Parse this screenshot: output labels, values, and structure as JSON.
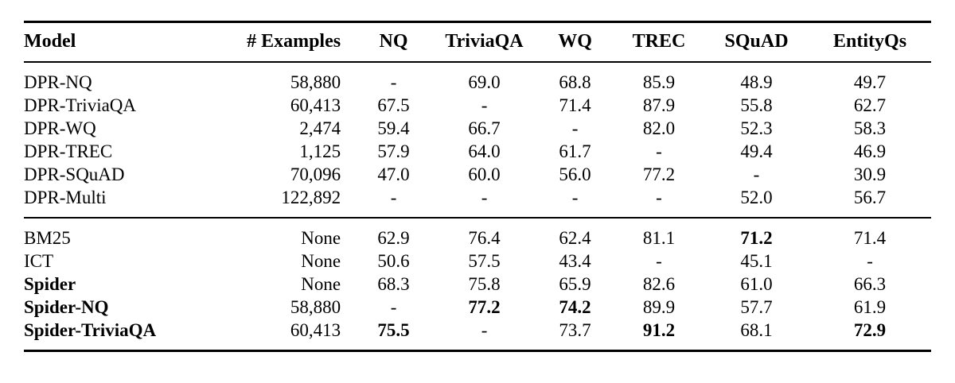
{
  "page": {
    "background_color": "#ffffff",
    "text_color": "#000000",
    "rule_color": "#000000"
  },
  "table": {
    "header": [
      "Model",
      "# Examples",
      "NQ",
      "TriviaQA",
      "WQ",
      "TREC",
      "SQuAD",
      "EntityQs"
    ],
    "col_align": [
      "left",
      "right",
      "center",
      "center",
      "center",
      "center",
      "center",
      "center"
    ],
    "groups": [
      {
        "name": "dpr-models",
        "rows": [
          {
            "cells": [
              "DPR-NQ",
              "58,880",
              "-",
              "69.0",
              "68.8",
              "85.9",
              "48.9",
              "49.7"
            ],
            "bold_cols": []
          },
          {
            "cells": [
              "DPR-TriviaQA",
              "60,413",
              "67.5",
              "-",
              "71.4",
              "87.9",
              "55.8",
              "62.7"
            ],
            "bold_cols": []
          },
          {
            "cells": [
              "DPR-WQ",
              "2,474",
              "59.4",
              "66.7",
              "-",
              "82.0",
              "52.3",
              "58.3"
            ],
            "bold_cols": []
          },
          {
            "cells": [
              "DPR-TREC",
              "1,125",
              "57.9",
              "64.0",
              "61.7",
              "-",
              "49.4",
              "46.9"
            ],
            "bold_cols": []
          },
          {
            "cells": [
              "DPR-SQuAD",
              "70,096",
              "47.0",
              "60.0",
              "56.0",
              "77.2",
              "-",
              "30.9"
            ],
            "bold_cols": []
          },
          {
            "cells": [
              "DPR-Multi",
              "122,892",
              "-",
              "-",
              "-",
              "-",
              "52.0",
              "56.7"
            ],
            "bold_cols": []
          }
        ]
      },
      {
        "name": "baselines-and-spider",
        "rows": [
          {
            "cells": [
              "BM25",
              "None",
              "62.9",
              "76.4",
              "62.4",
              "81.1",
              "71.2",
              "71.4"
            ],
            "bold_cols": [
              6
            ]
          },
          {
            "cells": [
              "ICT",
              "None",
              "50.6",
              "57.5",
              "43.4",
              "-",
              "45.1",
              "-"
            ],
            "bold_cols": []
          },
          {
            "cells": [
              "Spider",
              "None",
              "68.3",
              "75.8",
              "65.9",
              "82.6",
              "61.0",
              "66.3"
            ],
            "bold_cols": [
              0
            ]
          },
          {
            "cells": [
              "Spider-NQ",
              "58,880",
              "-",
              "77.2",
              "74.2",
              "89.9",
              "57.7",
              "61.9"
            ],
            "bold_cols": [
              0,
              3,
              4
            ]
          },
          {
            "cells": [
              "Spider-TriviaQA",
              "60,413",
              "75.5",
              "-",
              "73.7",
              "91.2",
              "68.1",
              "72.9"
            ],
            "bold_cols": [
              0,
              2,
              5,
              7
            ]
          }
        ]
      }
    ]
  }
}
